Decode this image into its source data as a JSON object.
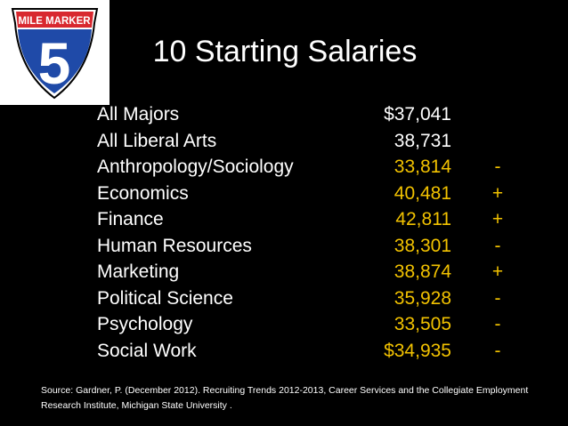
{
  "logo": {
    "banner_text": "MILE MARKER",
    "number": "5"
  },
  "title": "10 Starting Salaries",
  "rows": [
    {
      "major": "All Majors",
      "salary": "$37,041",
      "trend": "",
      "salary_color": "white"
    },
    {
      "major": "All Liberal Arts",
      "salary": "38,731",
      "trend": "",
      "salary_color": "white"
    },
    {
      "major": "Anthropology/Sociology",
      "salary": "33,814",
      "trend": "-",
      "salary_color": "gold"
    },
    {
      "major": "Economics",
      "salary": "40,481",
      "trend": "+",
      "salary_color": "gold"
    },
    {
      "major": "Finance",
      "salary": "42,811",
      "trend": "+",
      "salary_color": "gold"
    },
    {
      "major": "Human Resources",
      "salary": "38,301",
      "trend": "-",
      "salary_color": "gold"
    },
    {
      "major": "Marketing",
      "salary": "38,874",
      "trend": "+",
      "salary_color": "gold"
    },
    {
      "major": "Political Science",
      "salary": "35,928",
      "trend": "-",
      "salary_color": "gold"
    },
    {
      "major": "Psychology",
      "salary": "33,505",
      "trend": "-",
      "salary_color": "gold"
    },
    {
      "major": "Social Work",
      "salary": "$34,935",
      "trend": "-",
      "salary_color": "gold"
    }
  ],
  "source": "Source: Gardner, P. (December 2012). Recruiting Trends 2012-2013, Career Services and the Collegiate Employment Research Institute, Michigan State University .",
  "colors": {
    "background": "#000000",
    "text": "#ffffff",
    "accent": "#f2c200",
    "shield_blue": "#1f4aa8",
    "shield_red": "#d8282f"
  }
}
